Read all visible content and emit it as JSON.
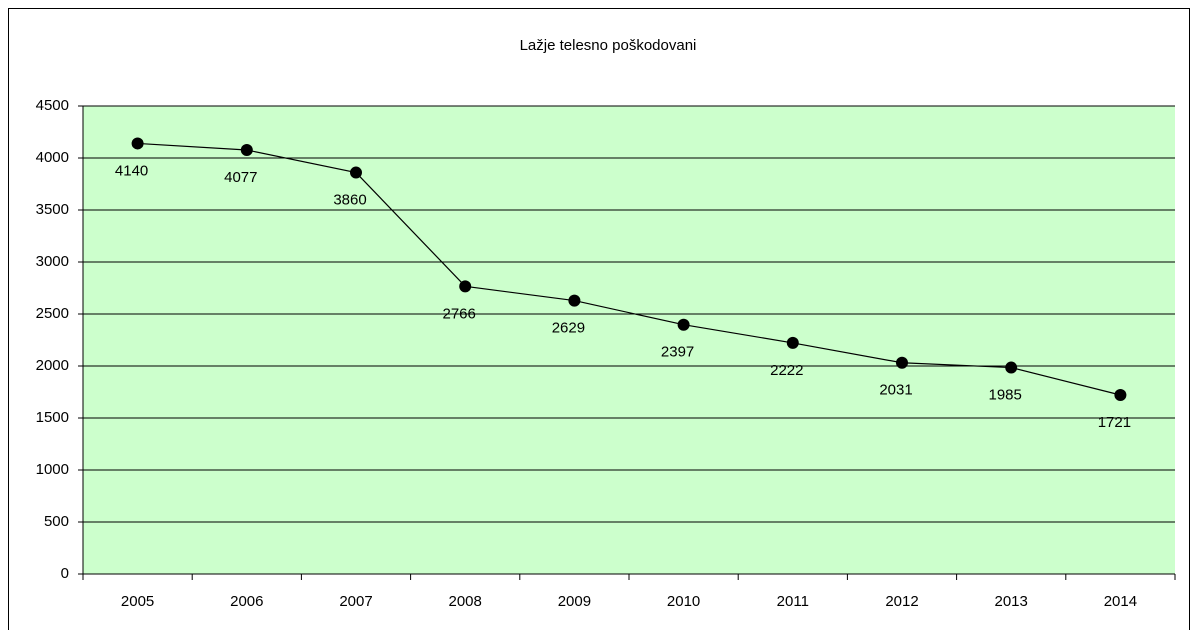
{
  "chart_data": {
    "type": "line",
    "title": "Lažje telesno poškodovani",
    "categories": [
      "2005",
      "2006",
      "2007",
      "2008",
      "2009",
      "2010",
      "2011",
      "2012",
      "2013",
      "2014"
    ],
    "series": [
      {
        "name": "Lažje telesno poškodovani",
        "color": "#000000",
        "values": [
          4140,
          4077,
          3860,
          2766,
          2629,
          2397,
          2222,
          2031,
          1985,
          1721
        ]
      }
    ],
    "ylim": [
      0,
      4500
    ],
    "yticks": [
      0,
      500,
      1000,
      1500,
      2000,
      2500,
      3000,
      3500,
      4000,
      4500
    ],
    "grid": true,
    "plot_background": "#ccffcc"
  }
}
